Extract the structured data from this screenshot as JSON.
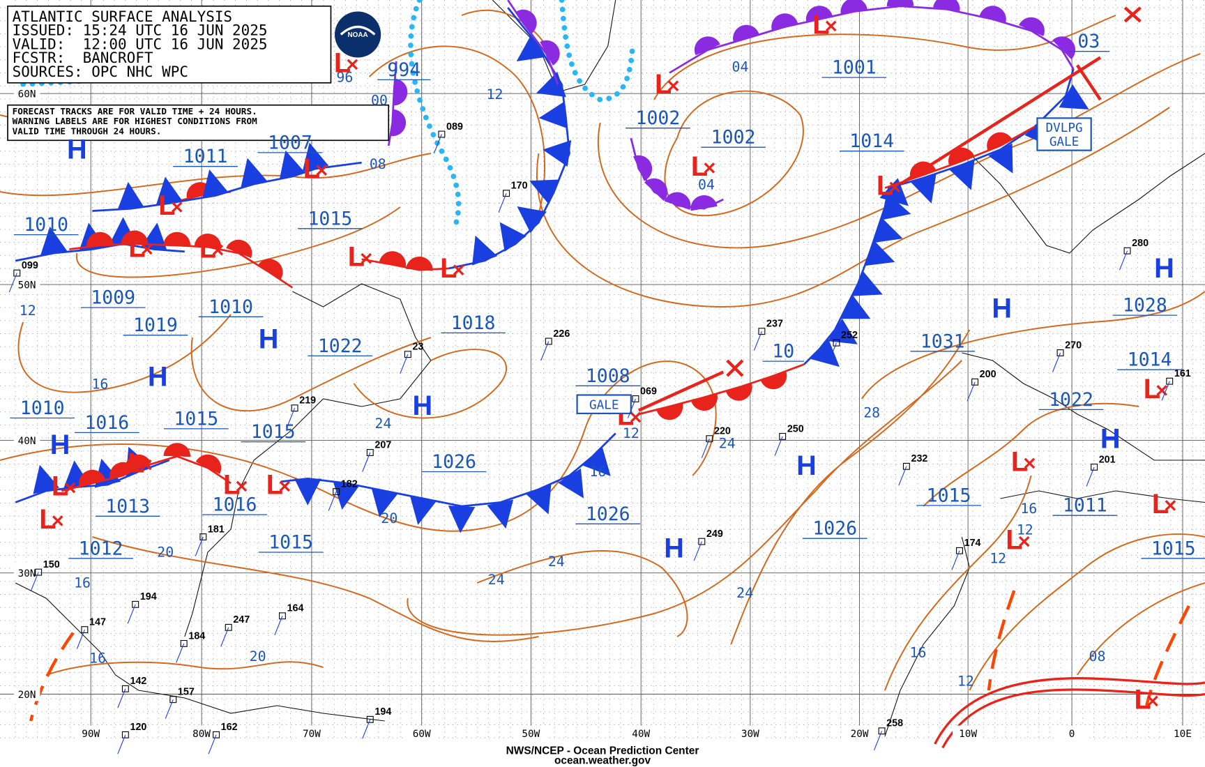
{
  "header": {
    "lines": [
      "ATLANTIC SURFACE ANALYSIS",
      "ISSUED: 15:24 UTC 16 JUN 2025",
      "VALID:  12:00 UTC 16 JUN 2025",
      "FCSTR:  BANCROFT",
      "SOURCES: OPC NHC WPC"
    ],
    "logo": "NOAA"
  },
  "notice": {
    "lines": [
      "FORECAST TRACKS ARE FOR VALID TIME + 24 HOURS.",
      "WARNING LABELS ARE FOR HIGHEST CONDITIONS FROM",
      "VALID TIME THROUGH 24 HOURS."
    ]
  },
  "lat_labels": [
    "60N",
    "50N",
    "40N",
    "30N",
    "20N"
  ],
  "lon_labels": [
    "90W",
    "80W",
    "70W",
    "60W",
    "50W",
    "40W",
    "30W",
    "20W",
    "10W",
    "0",
    "10E"
  ],
  "pressure_labels": [
    "994",
    "1001",
    "1002",
    "1002",
    "1014",
    "1011",
    "1007",
    "1010",
    "1015",
    "1009",
    "1010",
    "1019",
    "1018",
    "1022",
    "1031",
    "1028",
    "1014",
    "1008",
    "10",
    "1022",
    "1010",
    "1016",
    "1015",
    "1015",
    "1026",
    "1026",
    "1013",
    "1016",
    "1015",
    "1012",
    "1015",
    "1011",
    "1026",
    "1015",
    "03"
  ],
  "isobar_labels": [
    "12",
    "04",
    "08",
    "00",
    "96",
    "12",
    "16",
    "24",
    "20",
    "16",
    "12",
    "24",
    "28",
    "24",
    "24",
    "24",
    "20",
    "16",
    "16",
    "20",
    "16",
    "12",
    "08",
    "16",
    "12",
    "12",
    "04"
  ],
  "highs": [
    "H",
    "H",
    "H",
    "H",
    "H",
    "H",
    "H",
    "H",
    "H",
    "H",
    "H"
  ],
  "lows": [
    "L",
    "L",
    "L",
    "L",
    "L",
    "L",
    "L",
    "L",
    "L",
    "L",
    "L",
    "L",
    "L",
    "L",
    "L",
    "L",
    "L",
    "L",
    "L",
    "L",
    "L",
    "L"
  ],
  "warnings": [
    {
      "lines": [
        "GALE"
      ]
    },
    {
      "lines": [
        "DVLPG",
        "GALE"
      ]
    }
  ],
  "stations": [
    "089",
    "170",
    "226",
    "237",
    "252",
    "069",
    "250",
    "220",
    "200",
    "232",
    "201",
    "174",
    "258",
    "280",
    "270",
    "161",
    "207",
    "182",
    "249",
    "181",
    "164",
    "194",
    "147",
    "247",
    "184",
    "142",
    "157",
    "162",
    "120",
    "194",
    "219",
    "099",
    "150",
    "23"
  ],
  "footer": {
    "lines": [
      "NWS/NCEP - Ocean Prediction Center",
      "ocean.weather.gov"
    ]
  }
}
